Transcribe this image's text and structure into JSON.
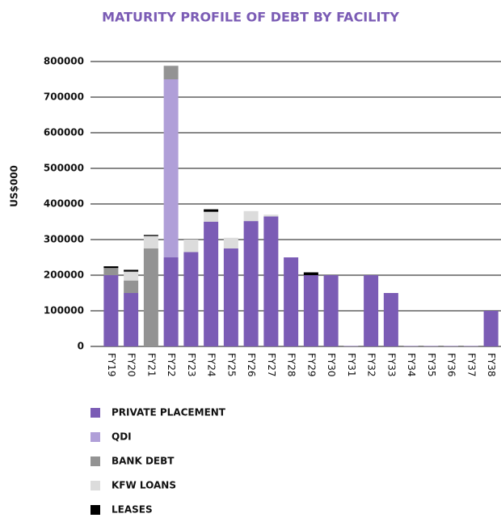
{
  "chart_data": {
    "type": "stacked_bar",
    "title": "MATURITY PROFILE OF DEBT BY FACILITY",
    "y_label": "US$000",
    "categories": [
      "FY19",
      "FY20",
      "FY21",
      "FY22",
      "FY23",
      "FY24",
      "FY25",
      "FY26",
      "FY27",
      "FY28",
      "FY29",
      "FY30",
      "FY31",
      "FY32",
      "FY33",
      "FY34",
      "FY35",
      "FY36",
      "FY37",
      "FY38"
    ],
    "series": [
      {
        "name": "PRIVATE PLACEMENT",
        "color": "#7b5cb5",
        "values": [
          200000,
          150000,
          0,
          250000,
          265000,
          350000,
          275000,
          352000,
          365000,
          250000,
          200000,
          200000,
          1000,
          200000,
          150000,
          1000,
          1000,
          1000,
          1000,
          100000
        ]
      },
      {
        "name": "QDI",
        "color": "#b09fd8",
        "values": [
          0,
          0,
          0,
          500000,
          0,
          0,
          0,
          0,
          0,
          0,
          0,
          0,
          0,
          0,
          0,
          0,
          0,
          0,
          0,
          0
        ]
      },
      {
        "name": "BANK DEBT",
        "color": "#939393",
        "values": [
          20000,
          35000,
          275000,
          38000,
          0,
          0,
          0,
          0,
          0,
          0,
          0,
          0,
          0,
          0,
          0,
          0,
          0,
          0,
          0,
          0
        ]
      },
      {
        "name": "KFW LOANS",
        "color": "#dcdcdc",
        "values": [
          0,
          25000,
          35000,
          0,
          35000,
          28000,
          30000,
          28000,
          5000,
          0,
          0,
          0,
          0,
          0,
          0,
          0,
          0,
          0,
          0,
          0
        ]
      },
      {
        "name": "LEASES",
        "color": "#000000",
        "values": [
          5000,
          5000,
          3000,
          0,
          0,
          7000,
          0,
          0,
          0,
          0,
          8000,
          0,
          0,
          0,
          0,
          0,
          0,
          0,
          0,
          0
        ]
      }
    ],
    "ylim": [
      0,
      800000
    ],
    "yticks": [
      0,
      100000,
      200000,
      300000,
      400000,
      500000,
      600000,
      700000,
      800000
    ],
    "grid": true
  }
}
